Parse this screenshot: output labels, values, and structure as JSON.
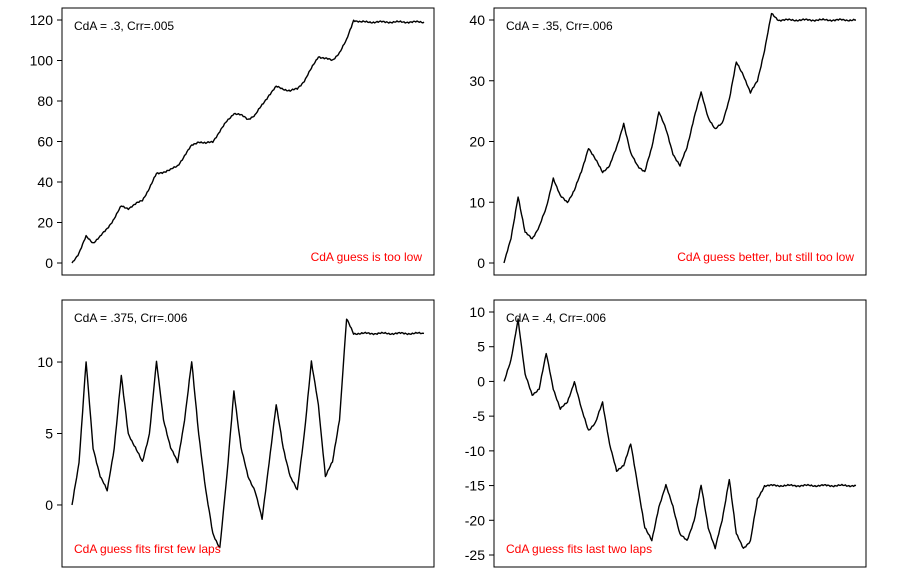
{
  "chart_data": [
    {
      "type": "line",
      "header_label": "CdA = .3, Crr=.005",
      "annotation": "CdA guess is too low",
      "annotation_color": "#ff0000",
      "line_color": "#000000",
      "ylim": [
        0,
        120
      ],
      "yticks": [
        0,
        20,
        40,
        60,
        80,
        100,
        120
      ],
      "grid": false,
      "legend": "none",
      "x": [
        0,
        2,
        4,
        6,
        8,
        10,
        12,
        14,
        16,
        18,
        20,
        22,
        24,
        26,
        28,
        30,
        32,
        34,
        36,
        38,
        40,
        42,
        44,
        46,
        48,
        50,
        52,
        54,
        56,
        58,
        60,
        62,
        64,
        66,
        68,
        70,
        72,
        74,
        76,
        78,
        80,
        82,
        84,
        86,
        88,
        90,
        92,
        94,
        96,
        98,
        100
      ],
      "values": [
        0,
        5,
        13,
        10,
        13,
        17,
        22,
        28,
        27,
        29,
        31,
        37,
        44,
        45,
        46,
        48,
        53,
        58,
        60,
        59,
        60,
        65,
        70,
        74,
        73,
        71,
        73,
        78,
        83,
        87,
        86,
        85,
        86,
        90,
        96,
        102,
        101,
        100,
        104,
        110,
        120,
        119,
        119,
        119,
        119,
        119,
        119,
        119,
        119,
        119,
        119
      ]
    },
    {
      "type": "line",
      "header_label": "CdA = .35, Crr=.006",
      "annotation": "CdA guess better, but still too low",
      "annotation_color": "#ff0000",
      "line_color": "#000000",
      "ylim": [
        0,
        40
      ],
      "yticks": [
        0,
        10,
        20,
        30,
        40
      ],
      "grid": false,
      "legend": "none",
      "x": [
        0,
        2,
        4,
        6,
        8,
        10,
        12,
        14,
        16,
        18,
        20,
        22,
        24,
        26,
        28,
        30,
        32,
        34,
        36,
        38,
        40,
        42,
        44,
        46,
        48,
        50,
        52,
        54,
        56,
        58,
        60,
        62,
        64,
        66,
        68,
        70,
        72,
        74,
        76,
        78,
        80,
        82,
        84,
        86,
        88,
        90,
        92,
        94,
        96,
        98,
        100
      ],
      "values": [
        0,
        4,
        11,
        5,
        4,
        6,
        9,
        14,
        11,
        10,
        12,
        15,
        19,
        17,
        15,
        16,
        19,
        23,
        18,
        16,
        15,
        19,
        25,
        22,
        18,
        16,
        19,
        24,
        28,
        24,
        22,
        23,
        27,
        33,
        31,
        28,
        30,
        35,
        41,
        40,
        40,
        40,
        40,
        40,
        40,
        40,
        40,
        40,
        40,
        40,
        40
      ]
    },
    {
      "type": "line",
      "header_label": "CdA = .375, Crr=.006",
      "annotation": "CdA guess fits first few laps",
      "annotation_color": "#ff0000",
      "line_color": "#000000",
      "ylim": [
        -3.5,
        13.5
      ],
      "yticks": [
        0,
        5,
        10
      ],
      "grid": false,
      "legend": "none",
      "x": [
        0,
        2,
        4,
        6,
        8,
        10,
        12,
        14,
        16,
        18,
        20,
        22,
        24,
        26,
        28,
        30,
        32,
        34,
        36,
        38,
        40,
        42,
        44,
        46,
        48,
        50,
        52,
        54,
        56,
        58,
        60,
        62,
        64,
        66,
        68,
        70,
        72,
        74,
        76,
        78,
        80,
        82,
        84,
        86,
        88,
        90,
        92,
        94,
        96,
        98,
        100
      ],
      "values": [
        0,
        3,
        10,
        4,
        2,
        1,
        4,
        9,
        5,
        4,
        3,
        5,
        10,
        6,
        4,
        3,
        6,
        10,
        5,
        1,
        -2,
        -3,
        2,
        8,
        4,
        2,
        1,
        -1,
        3,
        7,
        4,
        2,
        1,
        5,
        10,
        7,
        2,
        3,
        6,
        13,
        12,
        12,
        12,
        12,
        12,
        12,
        12,
        12,
        12,
        12,
        12
      ]
    },
    {
      "type": "line",
      "header_label": "CdA = .4, Crr=.006",
      "annotation": "CdA guess fits last two laps",
      "annotation_color": "#ff0000",
      "line_color": "#000000",
      "ylim": [
        -25,
        10
      ],
      "yticks": [
        -25,
        -20,
        -15,
        -10,
        -5,
        0,
        5,
        10
      ],
      "grid": false,
      "legend": "none",
      "x": [
        0,
        2,
        4,
        6,
        8,
        10,
        12,
        14,
        16,
        18,
        20,
        22,
        24,
        26,
        28,
        30,
        32,
        34,
        36,
        38,
        40,
        42,
        44,
        46,
        48,
        50,
        52,
        54,
        56,
        58,
        60,
        62,
        64,
        66,
        68,
        70,
        72,
        74,
        76,
        78,
        80,
        82,
        84,
        86,
        88,
        90,
        92,
        94,
        96,
        98,
        100
      ],
      "values": [
        0,
        3,
        9,
        1,
        -2,
        -1,
        4,
        -1,
        -4,
        -3,
        0,
        -4,
        -7,
        -6,
        -3,
        -9,
        -13,
        -12,
        -9,
        -15,
        -21,
        -23,
        -18,
        -15,
        -18,
        -22,
        -23,
        -20,
        -15,
        -21,
        -24,
        -20,
        -14,
        -22,
        -24,
        -23,
        -17,
        -15,
        -15,
        -15,
        -15,
        -15,
        -15,
        -15,
        -15,
        -15,
        -15,
        -15,
        -15,
        -15,
        -15
      ]
    }
  ]
}
